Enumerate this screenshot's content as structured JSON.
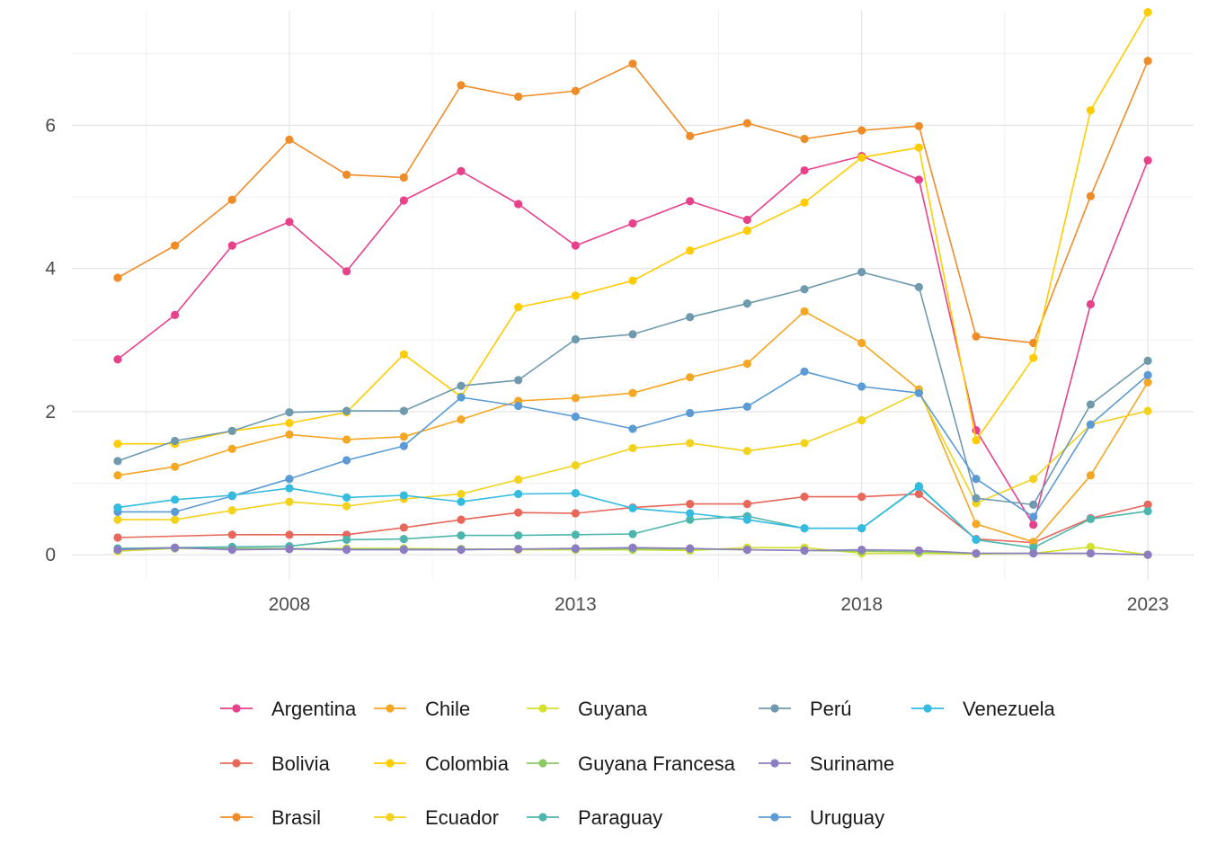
{
  "chart_data": {
    "type": "line",
    "title": "",
    "xlabel": "",
    "ylabel": "",
    "xlim": [
      2004.2,
      2023.8
    ],
    "ylim": [
      -0.35,
      7.6
    ],
    "x_ticks": [
      2008,
      2013,
      2018,
      2023
    ],
    "y_ticks": [
      0,
      2,
      4,
      6
    ],
    "grid": true,
    "legend_position": "bottom",
    "series": [
      {
        "name": "Argentina",
        "color": "#e8418c",
        "x": [
          2005,
          2006,
          2007,
          2008,
          2009,
          2010,
          2011,
          2012,
          2013,
          2014,
          2015,
          2016,
          2017,
          2018,
          2019,
          2020,
          2021,
          2022,
          2023
        ],
        "y": [
          2.73,
          3.35,
          4.32,
          4.65,
          3.96,
          4.95,
          5.36,
          4.9,
          4.32,
          4.63,
          4.94,
          4.68,
          5.37,
          5.57,
          5.24,
          1.74,
          0.42,
          3.5,
          5.51
        ]
      },
      {
        "name": "Bolivia",
        "color": "#e8665a",
        "x": [
          2005,
          2007,
          2008,
          2009,
          2010,
          2011,
          2012,
          2013,
          2014,
          2015,
          2016,
          2017,
          2018,
          2019,
          2020,
          2021,
          2022,
          2023
        ],
        "y": [
          0.24,
          0.28,
          0.28,
          0.28,
          0.38,
          0.49,
          0.59,
          0.58,
          0.66,
          0.71,
          0.71,
          0.81,
          0.81,
          0.85,
          0.22,
          0.17,
          0.51,
          0.7
        ]
      },
      {
        "name": "Brasil",
        "color": "#f08c28",
        "x": [
          2005,
          2006,
          2007,
          2008,
          2009,
          2010,
          2011,
          2012,
          2013,
          2014,
          2015,
          2016,
          2017,
          2018,
          2019,
          2020,
          2021,
          2022,
          2023
        ],
        "y": [
          3.87,
          4.32,
          4.96,
          5.8,
          5.31,
          5.27,
          6.56,
          6.4,
          6.48,
          6.86,
          5.85,
          6.03,
          5.81,
          5.93,
          5.99,
          3.05,
          2.96,
          5.01,
          6.9
        ]
      },
      {
        "name": "Chile",
        "color": "#f5a623",
        "x": [
          2005,
          2006,
          2007,
          2008,
          2009,
          2010,
          2011,
          2012,
          2013,
          2014,
          2015,
          2016,
          2017,
          2018,
          2019,
          2020,
          2021,
          2022,
          2023
        ],
        "y": [
          1.11,
          1.23,
          1.48,
          1.68,
          1.61,
          1.65,
          1.89,
          2.15,
          2.19,
          2.26,
          2.48,
          2.67,
          3.4,
          2.96,
          2.31,
          0.43,
          0.18,
          1.11,
          2.41
        ]
      },
      {
        "name": "Colombia",
        "color": "#ffcc00",
        "x": [
          2005,
          2006,
          2007,
          2008,
          2009,
          2010,
          2011,
          2012,
          2013,
          2014,
          2015,
          2016,
          2017,
          2018,
          2019,
          2020,
          2021,
          2022,
          2023
        ],
        "y": [
          1.55,
          1.55,
          1.73,
          1.84,
          1.99,
          2.8,
          2.21,
          3.46,
          3.62,
          3.83,
          4.25,
          4.53,
          4.92,
          5.55,
          5.69,
          1.6,
          2.75,
          6.21,
          7.58
        ]
      },
      {
        "name": "Ecuador",
        "color": "#f2d21b",
        "x": [
          2005,
          2006,
          2007,
          2008,
          2009,
          2010,
          2011,
          2012,
          2013,
          2014,
          2015,
          2016,
          2017,
          2018,
          2019,
          2020,
          2021,
          2022,
          2023
        ],
        "y": [
          0.49,
          0.49,
          0.62,
          0.74,
          0.68,
          0.78,
          0.85,
          1.05,
          1.25,
          1.49,
          1.56,
          1.45,
          1.56,
          1.88,
          2.27,
          0.72,
          1.06,
          1.82,
          2.01
        ]
      },
      {
        "name": "Guyana",
        "color": "#d4e02c",
        "x": [
          2005,
          2006,
          2007,
          2008,
          2009,
          2010,
          2011,
          2012,
          2013,
          2014,
          2015,
          2016,
          2017,
          2018,
          2019,
          2020,
          2021,
          2022,
          2023
        ],
        "y": [
          0.05,
          0.09,
          0.08,
          0.08,
          0.09,
          0.09,
          0.08,
          0.07,
          0.07,
          0.07,
          0.06,
          0.1,
          0.1,
          0.02,
          0.02,
          0.01,
          0.02,
          0.11,
          0.0
        ]
      },
      {
        "name": "Guyana Francesa",
        "color": "#8cc866",
        "x": [
          2005,
          2006,
          2007,
          2008,
          2009,
          2010,
          2011,
          2012,
          2013,
          2014,
          2015,
          2016,
          2017,
          2018,
          2019,
          2020,
          2021,
          2022,
          2023
        ],
        "y": [
          0.08,
          0.09,
          0.09,
          0.09,
          0.08,
          0.08,
          0.08,
          0.08,
          0.08,
          0.08,
          0.08,
          0.07,
          0.06,
          0.05,
          0.04,
          0.02,
          0.02,
          0.02,
          0.0
        ]
      },
      {
        "name": "Paraguay",
        "color": "#4db6ac",
        "x": [
          2005,
          2006,
          2007,
          2008,
          2009,
          2010,
          2011,
          2012,
          2013,
          2014,
          2015,
          2016,
          2017,
          2018,
          2019,
          2020,
          2021,
          2022,
          2023
        ],
        "y": [
          0.09,
          0.1,
          0.11,
          0.12,
          0.21,
          0.22,
          0.27,
          0.27,
          0.28,
          0.29,
          0.49,
          0.54,
          0.37,
          0.37,
          0.96,
          0.21,
          0.1,
          0.5,
          0.61
        ]
      },
      {
        "name": "Perú",
        "color": "#6f9aad",
        "x": [
          2005,
          2006,
          2007,
          2008,
          2009,
          2010,
          2011,
          2012,
          2013,
          2014,
          2015,
          2016,
          2017,
          2018,
          2019,
          2020,
          2021,
          2022,
          2023
        ],
        "y": [
          1.31,
          1.59,
          1.73,
          1.99,
          2.01,
          2.01,
          2.36,
          2.44,
          3.01,
          3.08,
          3.32,
          3.51,
          3.71,
          3.95,
          3.74,
          0.79,
          0.7,
          2.1,
          2.71
        ]
      },
      {
        "name": "Suriname",
        "color": "#8e7cc3",
        "x": [
          2005,
          2006,
          2007,
          2008,
          2009,
          2010,
          2011,
          2012,
          2013,
          2014,
          2015,
          2016,
          2017,
          2018,
          2019,
          2020,
          2021,
          2022,
          2023
        ],
        "y": [
          0.07,
          0.1,
          0.07,
          0.08,
          0.07,
          0.07,
          0.07,
          0.08,
          0.09,
          0.1,
          0.09,
          0.07,
          0.06,
          0.07,
          0.06,
          0.02,
          0.02,
          0.02,
          0.0
        ]
      },
      {
        "name": "Uruguay",
        "color": "#5b9bd5",
        "x": [
          2005,
          2006,
          2007,
          2008,
          2009,
          2010,
          2011,
          2012,
          2013,
          2014,
          2015,
          2016,
          2017,
          2018,
          2019,
          2020,
          2021,
          2022,
          2023
        ],
        "y": [
          0.6,
          0.6,
          0.82,
          1.06,
          1.32,
          1.52,
          2.2,
          2.08,
          1.93,
          1.76,
          1.98,
          2.07,
          2.56,
          2.35,
          2.26,
          1.06,
          0.53,
          1.82,
          2.51
        ]
      },
      {
        "name": "Venezuela",
        "color": "#33bbe0",
        "x": [
          2005,
          2006,
          2007,
          2008,
          2009,
          2010,
          2011,
          2012,
          2013,
          2014,
          2015,
          2016,
          2017,
          2018,
          2019,
          2020
        ],
        "y": [
          0.66,
          0.77,
          0.83,
          0.93,
          0.8,
          0.83,
          0.74,
          0.85,
          0.86,
          0.65,
          0.58,
          0.49,
          0.37,
          0.37,
          0.95,
          0.21
        ]
      }
    ],
    "legend_layout": [
      [
        "Argentina",
        "Chile",
        "Guyana",
        "Perú",
        "Venezuela"
      ],
      [
        "Bolivia",
        "Colombia",
        "Guyana Francesa",
        "Suriname"
      ],
      [
        "Brasil",
        "Ecuador",
        "Paraguay",
        "Uruguay"
      ]
    ]
  }
}
